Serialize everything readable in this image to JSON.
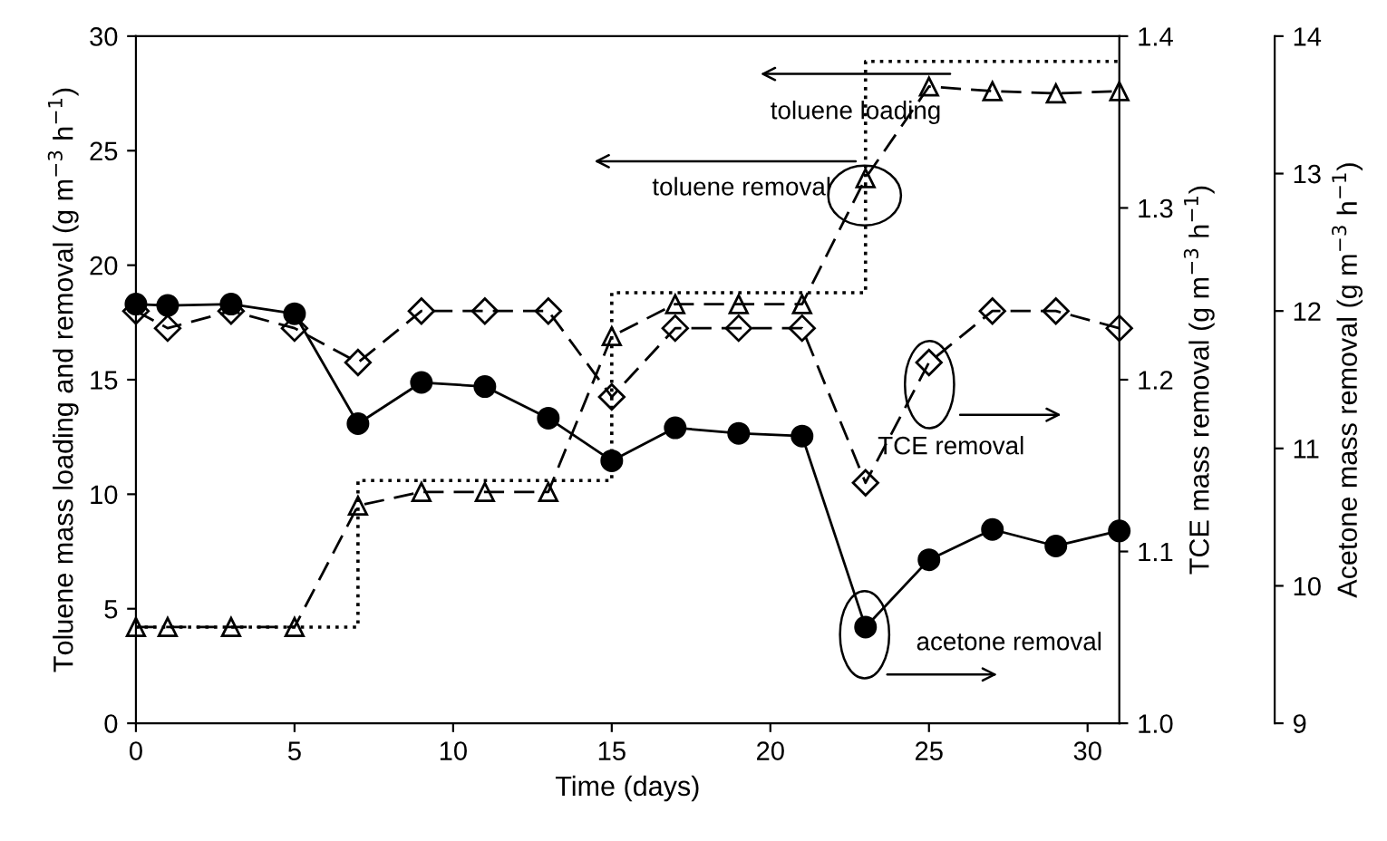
{
  "chart_data": {
    "type": "line",
    "xlabel": "Time (days)",
    "ylabel": "Toluene mass loading and removal (g m$^{−3}$ h$^{−1}$)",
    "y2label": "TCE mass removal (g m$^{−3}$ h$^{−1}$)",
    "y3label": "Acetone mass removal (g m$^{−3}$ h$^{−1}$)",
    "xlim": [
      0,
      31
    ],
    "xticks": [
      0,
      5,
      10,
      15,
      20,
      25,
      30
    ],
    "ylim": [
      0,
      30
    ],
    "yticks": [
      0,
      5,
      10,
      15,
      20,
      25,
      30
    ],
    "y2lim": [
      1.0,
      1.4
    ],
    "y2ticks": [
      {
        "value": 1.0,
        "label": "1.0"
      },
      1.1,
      1.2,
      1.3,
      1.4
    ],
    "y3lim": [
      9,
      14
    ],
    "y3ticks": [
      9,
      10,
      11,
      12,
      13,
      14
    ],
    "grid": false,
    "legend": false,
    "series": [
      {
        "type": "step",
        "color": "#000000",
        "line_style": "dotted",
        "marker": "none",
        "x": [
          0,
          7,
          15,
          23,
          31
        ],
        "values": [
          4.2,
          10.6,
          18.8,
          28.9,
          28.9
        ]
      },
      {
        "color": "#000000",
        "line_style": "dashed",
        "marker": "triangle",
        "x": [
          0,
          1,
          3,
          5,
          7,
          9,
          11,
          13,
          15,
          17,
          19,
          21,
          23,
          25,
          27,
          29,
          31
        ],
        "values": [
          4.2,
          4.2,
          4.2,
          4.2,
          9.5,
          10.1,
          10.1,
          10.1,
          16.9,
          18.3,
          18.3,
          18.3,
          23.8,
          27.8,
          27.6,
          27.5,
          27.6
        ]
      },
      {
        "axis": "y2",
        "color": "#000000",
        "line_style": "dashed",
        "marker": "diamond",
        "x": [
          0,
          1,
          3,
          5,
          7,
          9,
          11,
          13,
          15,
          17,
          19,
          21,
          23,
          25,
          27,
          29,
          31
        ],
        "values": [
          1.24,
          1.23,
          1.24,
          1.23,
          1.21,
          1.24,
          1.24,
          1.24,
          1.19,
          1.23,
          1.23,
          1.23,
          1.14,
          1.21,
          1.24,
          1.24,
          1.23
        ]
      },
      {
        "axis": "y3",
        "color": "#000000",
        "line_style": "solid",
        "marker": "circle",
        "x": [
          0,
          1,
          3,
          5,
          7,
          9,
          11,
          13,
          15,
          17,
          19,
          21,
          23,
          25,
          27,
          29,
          31
        ],
        "values": [
          12.05,
          12.04,
          12.05,
          11.98,
          11.18,
          11.48,
          11.45,
          11.22,
          10.91,
          11.15,
          11.11,
          11.09,
          9.7,
          10.19,
          10.41,
          10.29,
          10.4
        ]
      }
    ],
    "annotations": [
      "toluene loading",
      "toluene removal",
      "TCE removal",
      "acetone removal"
    ]
  }
}
